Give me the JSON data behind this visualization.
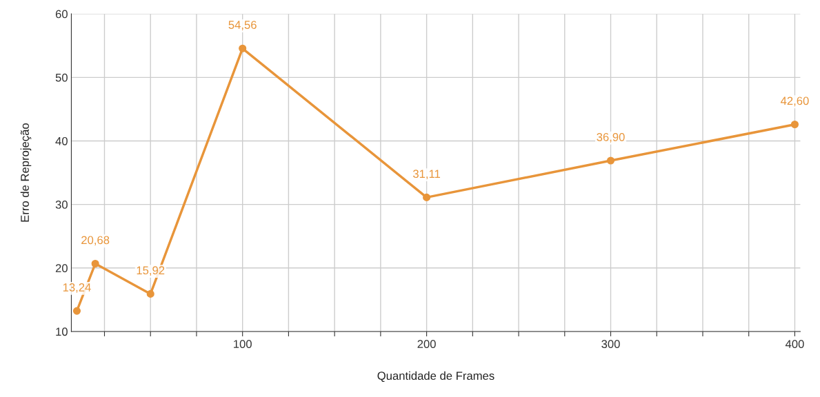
{
  "chart_data": {
    "type": "line",
    "xlabel": "Quantidade de Frames",
    "ylabel": "Erro de Reprojeção",
    "x": [
      10,
      20,
      50,
      100,
      200,
      300,
      400
    ],
    "series": [
      {
        "color": "#e8953a",
        "values": [
          13.24,
          20.68,
          15.92,
          54.56,
          31.11,
          36.9,
          42.6
        ],
        "value_labels": [
          "13,24",
          "20,68",
          "15,92",
          "54,56",
          "31,11",
          "36,90",
          "42,60"
        ]
      }
    ],
    "xlim": [
      7,
      403
    ],
    "ylim": [
      10,
      60
    ],
    "xticks": [
      {
        "value": 25,
        "label": null
      },
      {
        "value": 50,
        "label": null
      },
      {
        "value": 75,
        "label": null
      },
      100,
      {
        "value": 125,
        "label": null
      },
      {
        "value": 150,
        "label": null
      },
      {
        "value": 175,
        "label": null
      },
      200,
      {
        "value": 225,
        "label": null
      },
      {
        "value": 250,
        "label": null
      },
      {
        "value": 275,
        "label": null
      },
      300,
      {
        "value": 325,
        "label": null
      },
      {
        "value": 350,
        "label": null
      },
      {
        "value": 375,
        "label": null
      },
      400
    ],
    "yticks": [
      10,
      20,
      30,
      40,
      50,
      60
    ],
    "grid": true,
    "marker": "circle",
    "line_style": "solid"
  }
}
